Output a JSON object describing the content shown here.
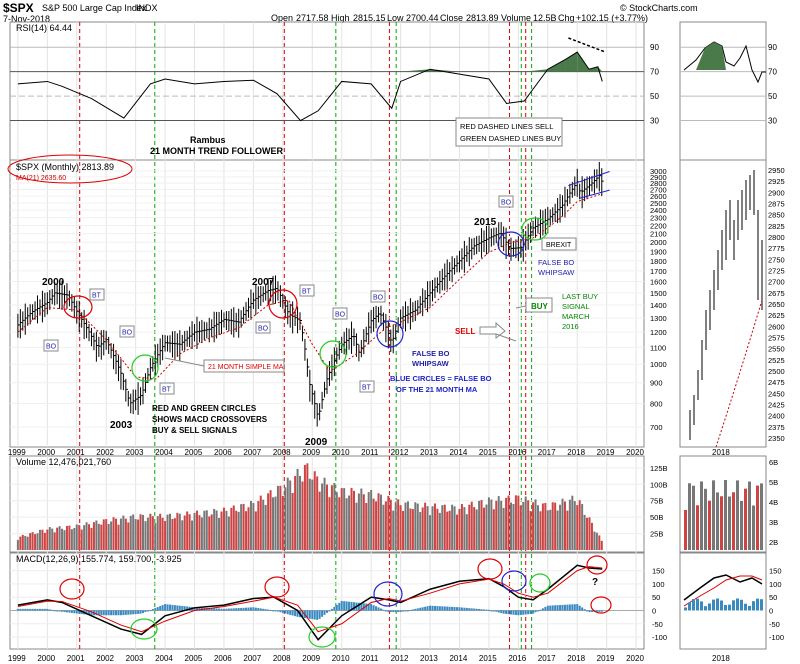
{
  "header": {
    "symbol": "$SPX",
    "name": "S&P 500 Large Cap Index",
    "exchange": "INDX",
    "brand": "© StockCharts.com",
    "date": "7-Nov-2018",
    "open_label": "Open",
    "open": "2717.58",
    "high_label": "High",
    "high": "2815.15",
    "low_label": "Low",
    "low": "2700.44",
    "close_label": "Close",
    "close": "2813.89",
    "volume_label": "Volume",
    "volume": "12.5B",
    "chg_label": "Chg",
    "chg": "+102.15 (+3.77%)"
  },
  "colors": {
    "price_bar": "#000000",
    "ma_line": "#cc0000",
    "red_dash": "#dd0000",
    "green_dash": "#00aa00",
    "circle_red": "#dd0000",
    "circle_green": "#22cc22",
    "circle_blue": "#2222cc",
    "rsi_fill": "#4a7a4a",
    "rsi_oversold": "#a04040",
    "vol_up": "#cc4444",
    "vol_down": "#777777",
    "macd_line": "#000000",
    "signal_line": "#dd0000",
    "histogram": "#3a8ac0",
    "label_blue": "#2222aa",
    "label_green": "#008800"
  },
  "chart_data": [
    {
      "type": "line",
      "title": "RSI(14) 64.44",
      "indicator": "RSI(14)",
      "value": "64.44",
      "y_ticks": [
        "90",
        "70",
        "50",
        "30"
      ],
      "ylim": [
        10,
        100
      ],
      "x": [
        1999,
        2000,
        2000.5,
        2001.5,
        2002.6,
        2003.5,
        2004,
        2005,
        2006,
        2007,
        2007.8,
        2008.6,
        2009.2,
        2010,
        2011,
        2011.7,
        2012,
        2013,
        2014,
        2015,
        2015.6,
        2016.2,
        2017,
        2017.6,
        2018,
        2018.4,
        2018.7,
        2018.85
      ],
      "values": [
        60,
        62,
        58,
        48,
        32,
        60,
        64,
        60,
        62,
        63,
        52,
        30,
        38,
        62,
        60,
        40,
        62,
        72,
        68,
        64,
        44,
        46,
        72,
        80,
        86,
        72,
        74,
        62
      ]
    },
    {
      "type": "bar",
      "title": "$SPX (Monthly) 2813.89",
      "legend": [
        "$SPX (Monthly) 2813.89",
        "MA(21) 2635.60"
      ],
      "y_ticks": [
        "3000",
        "2900",
        "2800",
        "2700",
        "2600",
        "2500",
        "2400",
        "2300",
        "2200",
        "2100",
        "2000",
        "1900",
        "1800",
        "1700",
        "1600",
        "1500",
        "1400",
        "1300",
        "1200",
        "1100",
        "1000",
        "900",
        "800",
        "700"
      ],
      "y_scale": "log",
      "ylim": [
        650,
        3050
      ],
      "x_ticks": [
        "1999",
        "2000",
        "2001",
        "2002",
        "2003",
        "2004",
        "2005",
        "2006",
        "2007",
        "2008",
        "2009",
        "2010",
        "2011",
        "2012",
        "2013",
        "2014",
        "2015",
        "2016",
        "2017",
        "2018",
        "2019",
        "2020"
      ],
      "series": [
        {
          "x": [
            1999,
            1999.5,
            2000,
            2000.25,
            2000.7,
            2001,
            2001.7,
            2002,
            2002.5,
            2002.8,
            2003.2,
            2003.5,
            2004,
            2004.5,
            2005,
            2005.5,
            2006,
            2006.5,
            2007,
            2007.5,
            2007.8,
            2008.2,
            2008.6,
            2008.9,
            2009.2,
            2009.5,
            2010,
            2010.4,
            2010.6,
            2011,
            2011.3,
            2011.7,
            2012,
            2012.5,
            2013,
            2013.5,
            2014,
            2014.5,
            2015,
            2015.4,
            2015.7,
            2016.1,
            2016.5,
            2017,
            2017.5,
            2018,
            2018.1,
            2018.5,
            2018.75,
            2018.85
          ],
          "values": [
            1250,
            1350,
            1420,
            1500,
            1480,
            1350,
            1100,
            1150,
            950,
            800,
            840,
            980,
            1130,
            1120,
            1200,
            1220,
            1290,
            1270,
            1440,
            1520,
            1540,
            1330,
            1280,
            900,
            735,
            920,
            1120,
            1180,
            1060,
            1280,
            1340,
            1130,
            1300,
            1360,
            1500,
            1650,
            1800,
            1960,
            2050,
            2110,
            1930,
            1940,
            2170,
            2280,
            2470,
            2820,
            2650,
            2800,
            2920,
            2813
          ]
        },
        {
          "name": "MA(21)",
          "x": [
            1999,
            2000,
            2001,
            2002,
            2003,
            2003.7,
            2004.5,
            2005.5,
            2006.5,
            2007.5,
            2008.2,
            2009,
            2009.6,
            2010.5,
            2011.5,
            2012,
            2013,
            2014,
            2015,
            2015.8,
            2016.5,
            2017,
            2017.5,
            2018,
            2018.85
          ],
          "values": [
            1200,
            1380,
            1360,
            1150,
            930,
            920,
            1060,
            1160,
            1230,
            1400,
            1440,
            1120,
            960,
            1060,
            1230,
            1270,
            1380,
            1620,
            1890,
            2000,
            2050,
            2170,
            2320,
            2520,
            2635
          ]
        }
      ],
      "upper_channel": [
        [
          2017.7,
          2760
        ],
        [
          2019.1,
          2990
        ]
      ],
      "lower_channel": [
        [
          2018.1,
          2570
        ],
        [
          2019.1,
          2690
        ]
      ],
      "annotations": {
        "y2000": "2000",
        "y2003": "2003",
        "y2007": "2007",
        "y2009": "2009",
        "y2015": "2015",
        "bo": "BO",
        "bt": "BT",
        "ma_label": "21 MONTH SIMPLE MA",
        "circles_note_1": "RED AND GREEN CIRCLES",
        "circles_note_2": "SHOWS MACD CROSSOVERS",
        "circles_note_3": "BUY & SELL SIGNALS",
        "false_bo_whipsaw_1": "FALSE BO",
        "false_bo_whipsaw_2": "WHIPSAW",
        "blue_note_1": "BLUE CIRCLES = FALSE BO",
        "blue_note_2": "OF THE 21 MONTH MA",
        "sell": "SELL",
        "buy": "BUY",
        "last_buy_1": "LAST BUY",
        "last_buy_2": "SIGNAL",
        "last_buy_3": "MARCH",
        "last_buy_4": "2016",
        "brexit": "BREXIT",
        "rambus_1": "Rambus",
        "rambus_2": "21 MONTH TREND FOLLOWER",
        "legend_box_1": "RED DASHED LINES SELL",
        "legend_box_2": "GREEN DASHED LINES BUY"
      }
    },
    {
      "type": "bar",
      "title": "Volume 12,476,021,760",
      "y_ticks": [
        "125B",
        "100B",
        "75B",
        "50B",
        "25B"
      ],
      "ylim": [
        0,
        140
      ],
      "x": [
        1999,
        2000,
        2001,
        2002,
        2003,
        2004,
        2005,
        2006,
        2007,
        2008,
        2008.8,
        2009.2,
        2010,
        2011,
        2012,
        2013,
        2014,
        2015,
        2016,
        2017,
        2018,
        2018.85
      ],
      "values": [
        18,
        30,
        34,
        42,
        48,
        48,
        52,
        56,
        66,
        90,
        118,
        100,
        84,
        80,
        66,
        62,
        60,
        70,
        74,
        62,
        74,
        12
      ]
    },
    {
      "type": "line",
      "title": "MACD(12,26,9) 155.774, 159.700, -3.925",
      "y_ticks": [
        "150",
        "100",
        "50",
        "0",
        "-50",
        "-100"
      ],
      "ylim": [
        -130,
        190
      ],
      "x": [
        1999,
        2000,
        2000.5,
        2001.5,
        2002.5,
        2003.2,
        2004,
        2005,
        2006,
        2007,
        2007.7,
        2008.5,
        2009.2,
        2010,
        2011,
        2011.6,
        2012,
        2013,
        2014,
        2015,
        2015.5,
        2016,
        2016.5,
        2017,
        2018,
        2018.4,
        2018.85
      ],
      "series": [
        {
          "name": "MACD",
          "values": [
            20,
            40,
            30,
            -20,
            -70,
            -90,
            -20,
            10,
            20,
            45,
            50,
            0,
            -110,
            -20,
            50,
            40,
            30,
            80,
            110,
            120,
            90,
            50,
            40,
            80,
            170,
            160,
            156
          ]
        },
        {
          "name": "Signal",
          "values": [
            15,
            35,
            34,
            -5,
            -55,
            -80,
            -40,
            0,
            15,
            35,
            50,
            20,
            -80,
            -50,
            30,
            45,
            35,
            65,
            100,
            118,
            100,
            65,
            50,
            65,
            150,
            165,
            160
          ]
        }
      ]
    }
  ],
  "side_panel": {
    "rsi_ticks": [
      "90",
      "70",
      "50",
      "30"
    ],
    "price_ticks": [
      "2950",
      "2925",
      "2900",
      "2875",
      "2850",
      "2825",
      "2800",
      "2775",
      "2750",
      "2725",
      "2700",
      "2675",
      "2650",
      "2625",
      "2600",
      "2575",
      "2550",
      "2525",
      "2500",
      "2475",
      "2450",
      "2425",
      "2400",
      "2375",
      "2350"
    ],
    "vol_ticks": [
      "6B",
      "5B",
      "4B",
      "3B",
      "2B"
    ],
    "macd_ticks": [
      "150",
      "100",
      "50",
      "0",
      "-50",
      "-100"
    ],
    "x_label": "2018",
    "question_mark": "?"
  }
}
